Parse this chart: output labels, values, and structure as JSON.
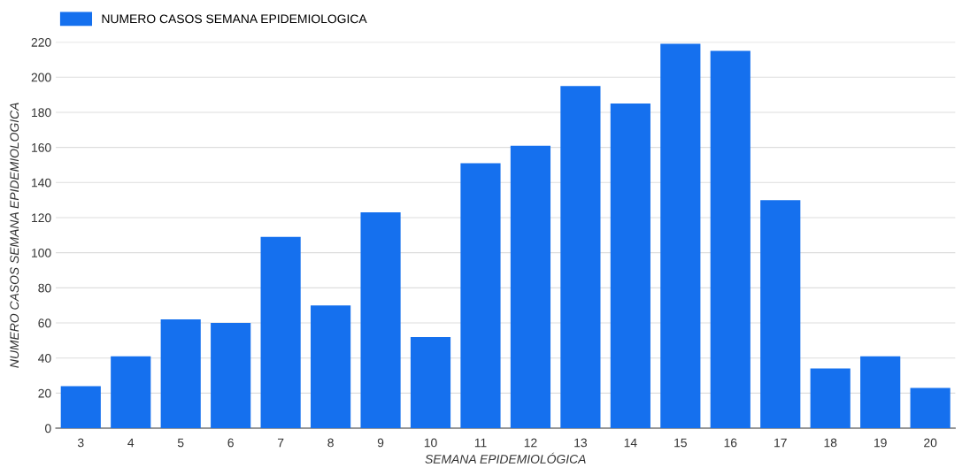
{
  "chart_data": {
    "type": "bar",
    "xlabel": "SEMANA EPIDEMIOLÓGICA",
    "ylabel": "NUMERO CASOS SEMANA EPIDEMIOLOGICA",
    "categories": [
      "3",
      "4",
      "5",
      "6",
      "7",
      "8",
      "9",
      "10",
      "11",
      "12",
      "13",
      "14",
      "15",
      "16",
      "17",
      "18",
      "19",
      "20"
    ],
    "series": [
      {
        "name": "NUMERO CASOS SEMANA EPIDEMIOLOGICA",
        "color": "#1570ee",
        "values": [
          24,
          41,
          62,
          60,
          109,
          70,
          123,
          52,
          151,
          161,
          195,
          185,
          219,
          215,
          130,
          34,
          41,
          23
        ]
      }
    ],
    "ylim": [
      0,
      220
    ],
    "yticks": [
      0,
      20,
      40,
      60,
      80,
      100,
      120,
      140,
      160,
      180,
      200,
      220
    ],
    "grid": "y",
    "legend": "top left"
  }
}
